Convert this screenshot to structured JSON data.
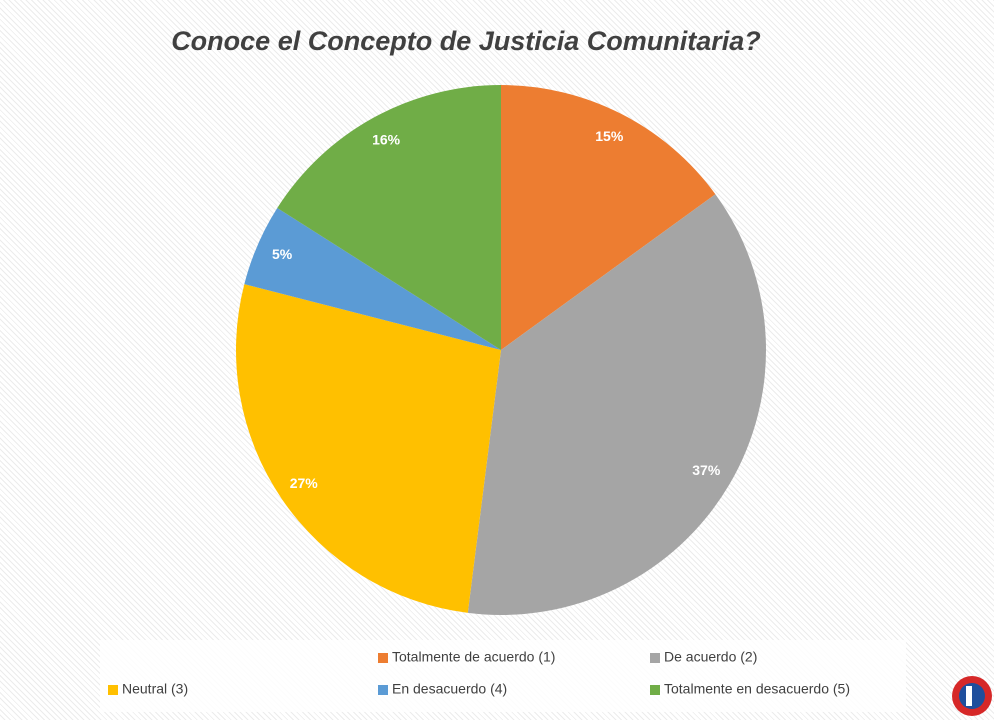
{
  "chart_data": {
    "type": "pie",
    "title": "Conoce el Concepto de  Justicia Comunitaria?",
    "categories": [
      "Totalmente de acuerdo (1)",
      "De acuerdo (2)",
      "Neutral (3)",
      "En desacuerdo (4)",
      "Totalmente en desacuerdo (5)"
    ],
    "values": [
      15,
      37,
      27,
      5,
      16
    ],
    "value_labels": [
      "15%",
      "37%",
      "27%",
      "5%",
      "16%"
    ],
    "colors": [
      "#ed7d31",
      "#a5a5a5",
      "#ffc000",
      "#5b9bd5",
      "#70ad47"
    ],
    "legend": "bottom"
  }
}
